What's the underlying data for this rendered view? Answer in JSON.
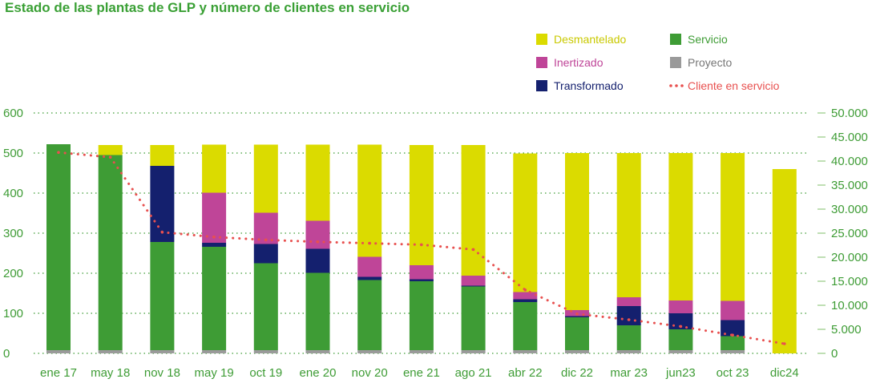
{
  "chart_data": {
    "type": "bar",
    "stacked": true,
    "title": "Estado de las plantas de GLP y número de clientes en servicio",
    "categories": [
      "ene 17",
      "may 18",
      "nov 18",
      "may 19",
      "oct 19",
      "ene 20",
      "nov 20",
      "ene 21",
      "ago 21",
      "abr 22",
      "dic 22",
      "mar 23",
      "jun23",
      "oct 23",
      "dic24"
    ],
    "ylim": [
      0,
      600
    ],
    "y_ticks": [
      "0",
      "100",
      "200",
      "300",
      "400",
      "500",
      "600"
    ],
    "y2lim": [
      0,
      50000
    ],
    "y2_ticks": [
      "0",
      "5.000",
      "10.000",
      "15.000",
      "20.000",
      "25.000",
      "30.000",
      "35.000",
      "40.000",
      "45.000",
      "50.000"
    ],
    "grid": true,
    "legend_position": "top-right",
    "series": [
      {
        "name": "Proyecto",
        "color": "#9a9a9a",
        "values": [
          8,
          8,
          8,
          8,
          8,
          8,
          8,
          8,
          8,
          8,
          8,
          8,
          8,
          8,
          0
        ]
      },
      {
        "name": "Servicio",
        "color": "#3e9c35",
        "values": [
          514,
          487,
          270,
          258,
          217,
          193,
          175,
          172,
          159,
          120,
          82,
          62,
          52,
          35,
          0
        ]
      },
      {
        "name": "Transformado",
        "color": "#14206e",
        "values": [
          0,
          0,
          190,
          10,
          48,
          60,
          8,
          5,
          2,
          7,
          3,
          48,
          40,
          40,
          0
        ]
      },
      {
        "name": "Inertizado",
        "color": "#bf4598",
        "values": [
          0,
          0,
          0,
          125,
          78,
          70,
          50,
          35,
          25,
          18,
          15,
          22,
          32,
          48,
          0
        ]
      },
      {
        "name": "Desmantelado",
        "color": "#dbdb00",
        "values": [
          0,
          25,
          52,
          120,
          170,
          190,
          280,
          300,
          326,
          346,
          392,
          360,
          368,
          369,
          460
        ]
      }
    ],
    "line": {
      "name": "Cliente en servicio",
      "color": "#e8504f",
      "values": [
        41800,
        40800,
        25200,
        24200,
        23600,
        23200,
        22900,
        22600,
        21600,
        13200,
        8200,
        7000,
        5600,
        3800,
        2000
      ]
    },
    "legend": [
      "Desmantelado",
      "Servicio",
      "Inertizado",
      "Proyecto",
      "Transformado",
      "Cliente en servicio"
    ]
  }
}
